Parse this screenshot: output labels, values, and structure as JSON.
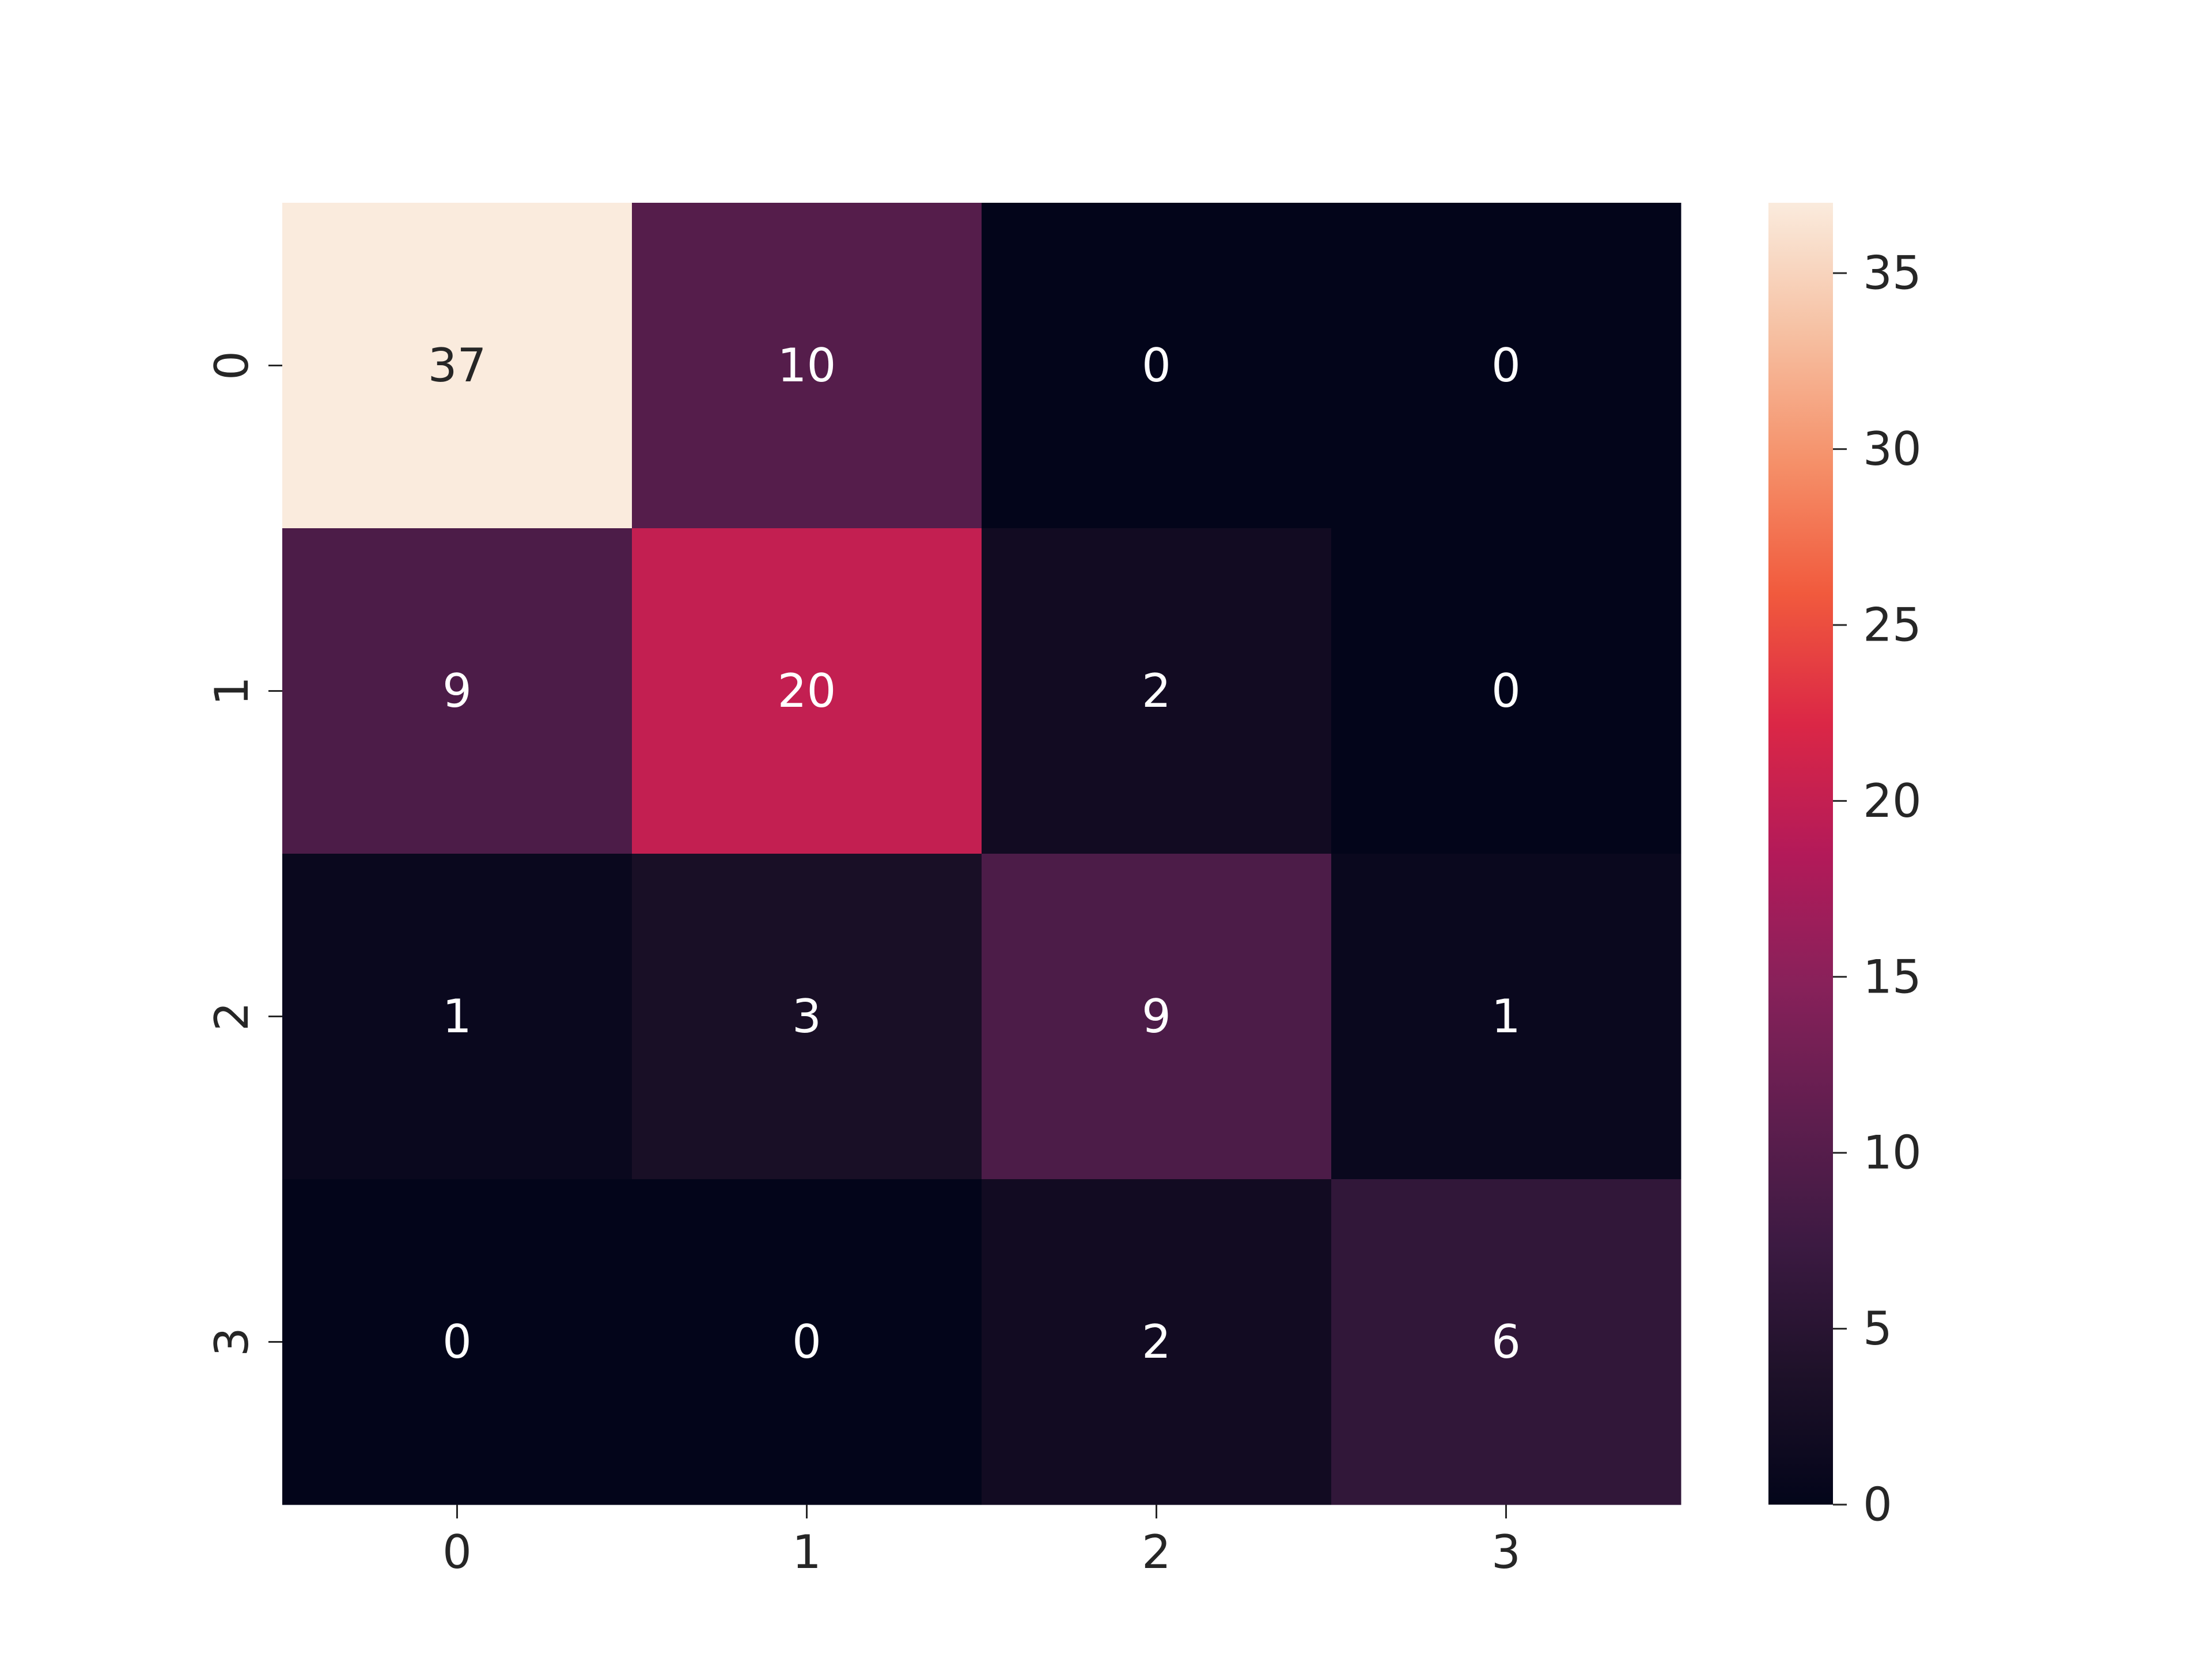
{
  "chart_data": {
    "type": "heatmap",
    "title": "",
    "xlabel": "",
    "ylabel": "",
    "x_tick_labels": [
      "0",
      "1",
      "2",
      "3"
    ],
    "y_tick_labels": [
      "0",
      "1",
      "2",
      "3"
    ],
    "values": [
      [
        37,
        10,
        0,
        0
      ],
      [
        9,
        20,
        2,
        0
      ],
      [
        1,
        3,
        9,
        1
      ],
      [
        0,
        0,
        2,
        6
      ]
    ],
    "colorbar": {
      "range": [
        0,
        37
      ],
      "ticks": [
        0,
        5,
        10,
        15,
        20,
        25,
        30,
        35
      ],
      "colormap": "rocket"
    },
    "annotations": true,
    "grid": false,
    "legend": "colorbar-right"
  }
}
